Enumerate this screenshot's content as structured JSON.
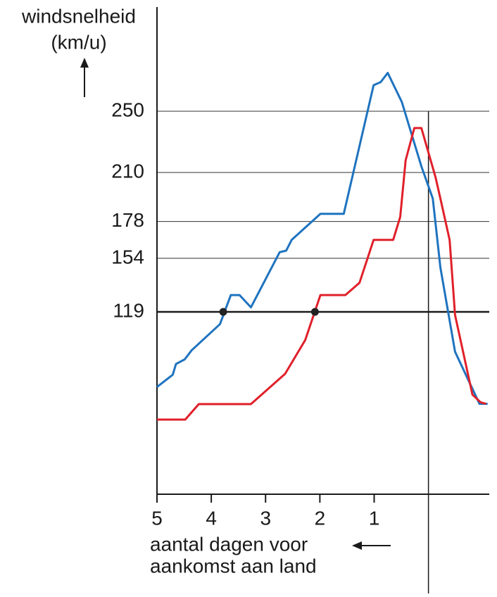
{
  "chart_data": {
    "type": "line",
    "y_label": [
      "windsnelheid",
      "(km/u)"
    ],
    "x_label": [
      "aantal dagen voor",
      "aankomst aan land"
    ],
    "xlim": [
      5,
      -1.12
    ],
    "ylim": [
      0,
      318
    ],
    "xticks": [
      5,
      4,
      3,
      2,
      1
    ],
    "yticks": [
      119,
      154,
      178,
      210,
      250
    ],
    "grid": true,
    "hline_y": 119,
    "vline_x": 0,
    "series": [
      {
        "color": "#1f73bf",
        "x": [
          5.0,
          4.71,
          4.65,
          4.49,
          4.36,
          3.84,
          3.64,
          3.48,
          3.27,
          2.74,
          2.62,
          2.52,
          1.99,
          1.56,
          1.01,
          0.88,
          0.75,
          0.49,
          0.13,
          -0.08,
          -0.22,
          -0.49,
          -0.94,
          -1.09
        ],
        "values": [
          70,
          78,
          85,
          88,
          94,
          111,
          130,
          130,
          122,
          158,
          159,
          166,
          183,
          183,
          267,
          269,
          275,
          256,
          214,
          193,
          148,
          93,
          59,
          59
        ]
      },
      {
        "color": "#e0202a",
        "x": [
          5.0,
          4.48,
          4.23,
          3.27,
          2.64,
          2.27,
          1.99,
          1.53,
          1.27,
          1.01,
          0.65,
          0.52,
          0.42,
          0.26,
          0.13,
          -0.13,
          -0.22,
          -0.39,
          -0.49,
          -0.81,
          -0.96,
          -1.06
        ],
        "values": [
          48.7,
          48.7,
          58.8,
          58.8,
          78.6,
          100.6,
          130,
          130,
          138,
          166,
          166,
          181,
          218,
          239,
          239,
          207,
          193,
          166,
          117,
          65,
          60,
          59
        ]
      }
    ],
    "markers": {
      "x": [
        3.78,
        2.09
      ],
      "values": [
        119,
        119
      ],
      "color": "#222222"
    }
  }
}
